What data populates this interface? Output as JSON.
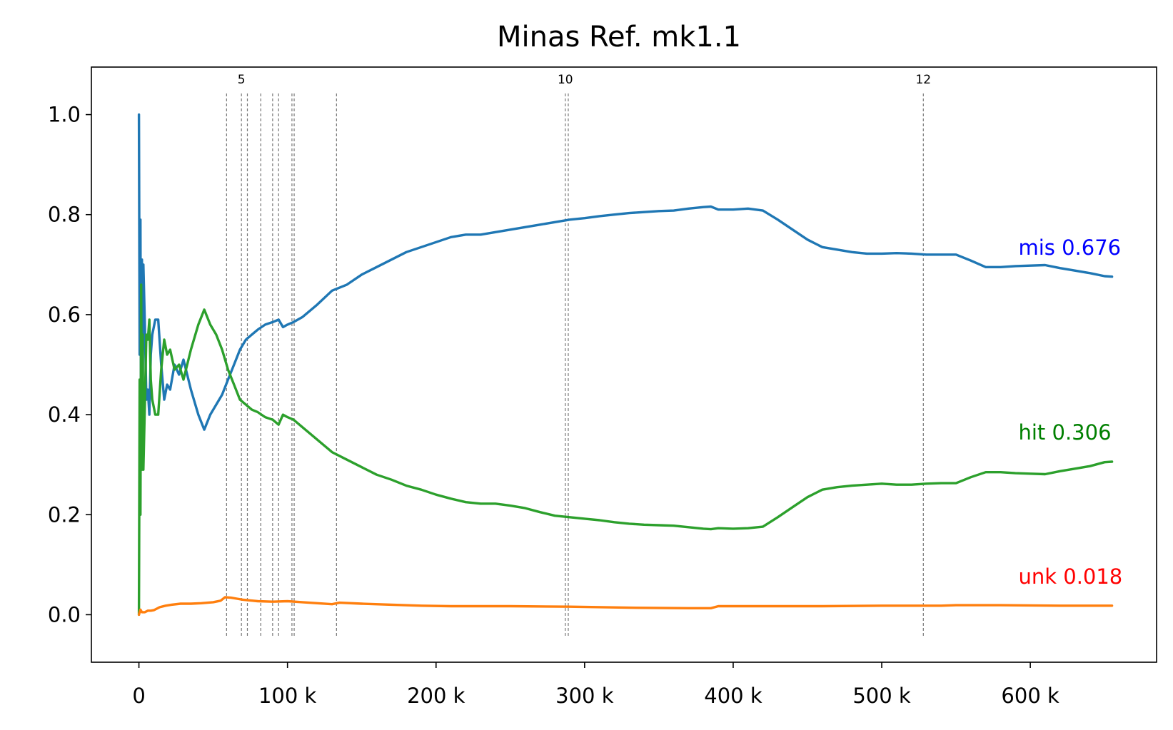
{
  "chart_data": {
    "type": "line",
    "title": "Minas Ref. mk1.1",
    "xlabel": "",
    "ylabel": "",
    "xlim": [
      -32000,
      685000
    ],
    "ylim": [
      -0.095,
      1.095
    ],
    "grid": false,
    "legend": "none",
    "x_ticks": [
      {
        "value": 0,
        "label": "0"
      },
      {
        "value": 100000,
        "label": "100 k"
      },
      {
        "value": 200000,
        "label": "200 k"
      },
      {
        "value": 300000,
        "label": "300 k"
      },
      {
        "value": 400000,
        "label": "400 k"
      },
      {
        "value": 500000,
        "label": "500 k"
      },
      {
        "value": 600000,
        "label": "600 k"
      }
    ],
    "y_ticks": [
      {
        "value": 0.0,
        "label": "0.0"
      },
      {
        "value": 0.2,
        "label": "0.2"
      },
      {
        "value": 0.4,
        "label": "0.4"
      },
      {
        "value": 0.6,
        "label": "0.6"
      },
      {
        "value": 0.8,
        "label": "0.8"
      },
      {
        "value": 1.0,
        "label": "1.0"
      }
    ],
    "vertical_lines": [
      {
        "x": 59000,
        "label": ""
      },
      {
        "x": 69000,
        "label": "5"
      },
      {
        "x": 73000,
        "label": ""
      },
      {
        "x": 82000,
        "label": ""
      },
      {
        "x": 90000,
        "label": ""
      },
      {
        "x": 94000,
        "label": ""
      },
      {
        "x": 103000,
        "label": ""
      },
      {
        "x": 104500,
        "label": ""
      },
      {
        "x": 133000,
        "label": ""
      },
      {
        "x": 287000,
        "label": "10"
      },
      {
        "x": 289000,
        "label": ""
      },
      {
        "x": 528000,
        "label": "12"
      }
    ],
    "series": [
      {
        "key": "mis",
        "color": "#1f77b4",
        "x": [
          0,
          500,
          1000,
          1500,
          2000,
          2500,
          3000,
          4000,
          5000,
          6000,
          7000,
          8000,
          9000,
          11000,
          13000,
          15000,
          17000,
          19000,
          21000,
          24000,
          27000,
          30000,
          35000,
          40000,
          44000,
          48000,
          52000,
          56000,
          60000,
          64000,
          68000,
          72000,
          76000,
          80000,
          85000,
          90000,
          94000,
          97000,
          100000,
          104000,
          110000,
          120000,
          130000,
          140000,
          150000,
          160000,
          170000,
          180000,
          190000,
          200000,
          210000,
          220000,
          230000,
          240000,
          250000,
          260000,
          270000,
          280000,
          290000,
          300000,
          310000,
          320000,
          330000,
          340000,
          350000,
          360000,
          370000,
          380000,
          385000,
          390000,
          400000,
          410000,
          420000,
          430000,
          440000,
          450000,
          460000,
          470000,
          480000,
          490000,
          500000,
          510000,
          520000,
          530000,
          540000,
          550000,
          560000,
          570000,
          580000,
          590000,
          600000,
          610000,
          620000,
          630000,
          640000,
          650000,
          655000
        ],
        "y": [
          1.0,
          0.52,
          0.79,
          0.3,
          0.71,
          0.42,
          0.7,
          0.58,
          0.43,
          0.45,
          0.4,
          0.52,
          0.56,
          0.59,
          0.59,
          0.5,
          0.43,
          0.46,
          0.45,
          0.5,
          0.48,
          0.51,
          0.45,
          0.4,
          0.37,
          0.4,
          0.42,
          0.44,
          0.47,
          0.5,
          0.53,
          0.55,
          0.56,
          0.57,
          0.58,
          0.585,
          0.59,
          0.575,
          0.58,
          0.585,
          0.595,
          0.62,
          0.648,
          0.66,
          0.68,
          0.695,
          0.71,
          0.725,
          0.735,
          0.745,
          0.755,
          0.76,
          0.76,
          0.765,
          0.77,
          0.775,
          0.78,
          0.785,
          0.79,
          0.793,
          0.797,
          0.8,
          0.803,
          0.805,
          0.807,
          0.808,
          0.812,
          0.815,
          0.816,
          0.81,
          0.81,
          0.812,
          0.808,
          0.79,
          0.77,
          0.75,
          0.735,
          0.73,
          0.725,
          0.722,
          0.722,
          0.723,
          0.722,
          0.72,
          0.72,
          0.72,
          0.708,
          0.695,
          0.695,
          0.697,
          0.698,
          0.699,
          0.693,
          0.688,
          0.683,
          0.677,
          0.676
        ]
      },
      {
        "key": "hit",
        "color": "#2ca02c",
        "x": [
          0,
          500,
          1000,
          1500,
          2000,
          2500,
          3000,
          4000,
          5000,
          6000,
          7000,
          8000,
          9000,
          11000,
          13000,
          15000,
          17000,
          19000,
          21000,
          24000,
          27000,
          30000,
          35000,
          40000,
          44000,
          48000,
          52000,
          56000,
          60000,
          64000,
          68000,
          72000,
          76000,
          80000,
          85000,
          90000,
          94000,
          97000,
          100000,
          104000,
          110000,
          120000,
          130000,
          140000,
          150000,
          160000,
          170000,
          180000,
          190000,
          200000,
          210000,
          220000,
          230000,
          240000,
          250000,
          260000,
          270000,
          280000,
          290000,
          300000,
          310000,
          320000,
          330000,
          340000,
          350000,
          360000,
          370000,
          380000,
          385000,
          390000,
          400000,
          410000,
          420000,
          430000,
          440000,
          450000,
          460000,
          470000,
          480000,
          490000,
          500000,
          510000,
          520000,
          530000,
          540000,
          550000,
          560000,
          570000,
          580000,
          590000,
          600000,
          610000,
          620000,
          630000,
          640000,
          650000,
          655000
        ],
        "y": [
          0.0,
          0.47,
          0.2,
          0.66,
          0.29,
          0.56,
          0.29,
          0.42,
          0.56,
          0.55,
          0.59,
          0.47,
          0.43,
          0.4,
          0.4,
          0.49,
          0.55,
          0.52,
          0.53,
          0.49,
          0.5,
          0.47,
          0.53,
          0.58,
          0.61,
          0.58,
          0.56,
          0.53,
          0.49,
          0.46,
          0.43,
          0.42,
          0.41,
          0.405,
          0.395,
          0.39,
          0.38,
          0.4,
          0.395,
          0.39,
          0.375,
          0.35,
          0.325,
          0.31,
          0.295,
          0.28,
          0.27,
          0.258,
          0.25,
          0.24,
          0.232,
          0.225,
          0.222,
          0.222,
          0.218,
          0.213,
          0.205,
          0.198,
          0.195,
          0.192,
          0.189,
          0.185,
          0.182,
          0.18,
          0.179,
          0.178,
          0.175,
          0.172,
          0.171,
          0.173,
          0.172,
          0.173,
          0.176,
          0.195,
          0.215,
          0.235,
          0.25,
          0.255,
          0.258,
          0.26,
          0.262,
          0.26,
          0.26,
          0.262,
          0.263,
          0.263,
          0.275,
          0.285,
          0.285,
          0.283,
          0.282,
          0.281,
          0.287,
          0.292,
          0.297,
          0.305,
          0.306
        ]
      },
      {
        "key": "unk",
        "color": "#ff7f0e",
        "x": [
          0,
          1000,
          2000,
          4000,
          6000,
          8000,
          10000,
          12000,
          14000,
          18000,
          22000,
          28000,
          35000,
          42000,
          50000,
          55000,
          58000,
          62000,
          66000,
          70000,
          80000,
          90000,
          100000,
          110000,
          120000,
          130000,
          135000,
          150000,
          170000,
          190000,
          210000,
          250000,
          290000,
          330000,
          370000,
          385000,
          390000,
          420000,
          460000,
          500000,
          540000,
          550000,
          580000,
          620000,
          655000
        ],
        "y": [
          0.0,
          0.01,
          0.005,
          0.005,
          0.008,
          0.008,
          0.009,
          0.012,
          0.015,
          0.018,
          0.02,
          0.022,
          0.022,
          0.023,
          0.025,
          0.028,
          0.035,
          0.034,
          0.032,
          0.03,
          0.027,
          0.026,
          0.027,
          0.025,
          0.023,
          0.021,
          0.024,
          0.022,
          0.02,
          0.018,
          0.017,
          0.017,
          0.016,
          0.014,
          0.013,
          0.013,
          0.017,
          0.017,
          0.017,
          0.018,
          0.018,
          0.019,
          0.019,
          0.018,
          0.018
        ]
      }
    ],
    "annotations": [
      {
        "text": "mis 0.676",
        "color": "#0000ff",
        "x": 592000,
        "y": 0.72
      },
      {
        "text": "hit 0.306",
        "color": "#008000",
        "x": 592000,
        "y": 0.35
      },
      {
        "text": "unk 0.018",
        "color": "#ff0000",
        "x": 592000,
        "y": 0.062
      }
    ]
  }
}
